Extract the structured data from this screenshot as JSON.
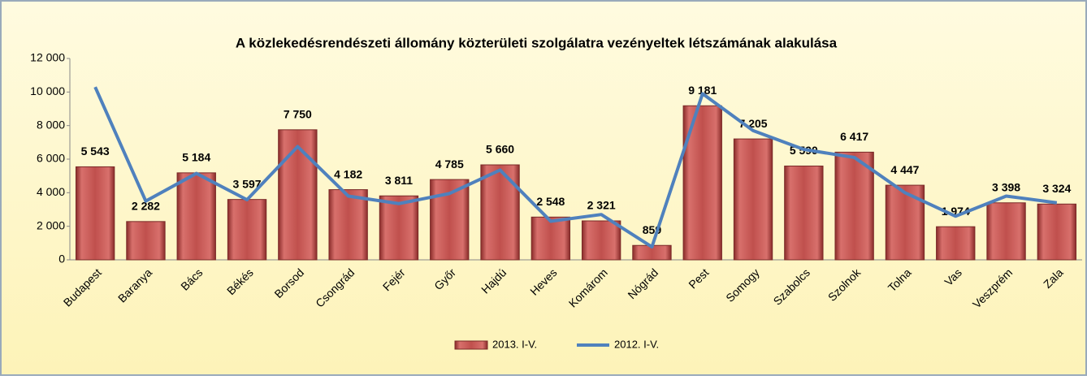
{
  "chart_data": {
    "type": "bar+line",
    "title": "A közlekedésrendészeti állomány közterületi szolgálatra vezényeltek létszámának alakulása",
    "categories": [
      "Budapest",
      "Baranya",
      "Bács",
      "Békés",
      "Borsod",
      "Csongrád",
      "Fejér",
      "Győr",
      "Hajdú",
      "Heves",
      "Komárom",
      "Nógrád",
      "Pest",
      "Somogy",
      "Szabolcs",
      "Szolnok",
      "Tolna",
      "Vas",
      "Veszprém",
      "Zala"
    ],
    "series": [
      {
        "name": "2013. I-V.",
        "type": "bar",
        "color": "#c0504d",
        "values": [
          5543,
          2282,
          5184,
          3597,
          7750,
          4182,
          3811,
          4785,
          5660,
          2548,
          2321,
          859,
          9181,
          7205,
          5590,
          6417,
          4447,
          1974,
          3398,
          3324
        ],
        "value_labels": [
          "5 543",
          "2 282",
          "5 184",
          "3 597",
          "7 750",
          "4 182",
          "3 811",
          "4 785",
          "5 660",
          "2 548",
          "2 321",
          "859",
          "9 181",
          "7 205",
          "5 590",
          "6 417",
          "4 447",
          "1 974",
          "3 398",
          "3 324"
        ]
      },
      {
        "name": "2012. I-V.",
        "type": "line",
        "color": "#4f81bd",
        "values": [
          10300,
          3500,
          5150,
          3580,
          6750,
          3800,
          3350,
          3950,
          5350,
          2300,
          2700,
          770,
          9900,
          7700,
          6580,
          6100,
          4000,
          2600,
          3800,
          3400
        ]
      }
    ],
    "ylim": [
      0,
      12000
    ],
    "yticks": [
      0,
      {
        "value": 2000,
        "label": "2 000"
      },
      {
        "value": 4000,
        "label": "4 000"
      },
      {
        "value": 6000,
        "label": "6 000"
      },
      {
        "value": 8000,
        "label": "8 000"
      },
      {
        "value": 10000,
        "label": "10 000"
      },
      {
        "value": 12000,
        "label": "12 000"
      }
    ],
    "legend": "bottom"
  }
}
